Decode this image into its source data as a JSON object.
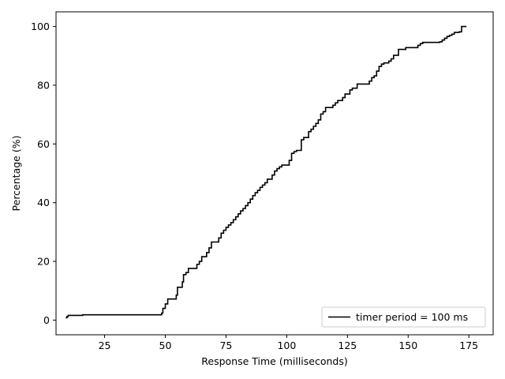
{
  "chart_data": {
    "type": "line",
    "step": true,
    "xlabel": "Response Time (milliseconds)",
    "ylabel": "Percentage (%)",
    "xlim": [
      5,
      185
    ],
    "ylim": [
      -5,
      105
    ],
    "xticks": [
      25,
      50,
      75,
      100,
      125,
      150,
      175
    ],
    "yticks": [
      0,
      20,
      40,
      60,
      80,
      100
    ],
    "grid": false,
    "legend_position": "bottom-right",
    "series": [
      {
        "name": "timer period = 100 ms",
        "color": "#000000",
        "points": [
          [
            9,
            0.8
          ],
          [
            9.5,
            1.2
          ],
          [
            10,
            1.6
          ],
          [
            15.5,
            1.6
          ],
          [
            16,
            1.8
          ],
          [
            48,
            1.8
          ],
          [
            48.5,
            2.4
          ],
          [
            49,
            4.0
          ],
          [
            50,
            5.5
          ],
          [
            51,
            7.2
          ],
          [
            54,
            7.2
          ],
          [
            54.5,
            8.5
          ],
          [
            55,
            11.2
          ],
          [
            57,
            13.0
          ],
          [
            57.5,
            15.5
          ],
          [
            58.5,
            16.2
          ],
          [
            59.5,
            17.6
          ],
          [
            62.5,
            17.6
          ],
          [
            63,
            19.0
          ],
          [
            64,
            20.0
          ],
          [
            65,
            21.6
          ],
          [
            67,
            23.0
          ],
          [
            68,
            24.6
          ],
          [
            69,
            26.6
          ],
          [
            72,
            28.0
          ],
          [
            73,
            29.6
          ],
          [
            74,
            30.6
          ],
          [
            75,
            31.6
          ],
          [
            76,
            32.4
          ],
          [
            77,
            33.2
          ],
          [
            78,
            34.2
          ],
          [
            79,
            35.2
          ],
          [
            80,
            36.2
          ],
          [
            81,
            37.2
          ],
          [
            82,
            38.0
          ],
          [
            83,
            39.0
          ],
          [
            84,
            40.0
          ],
          [
            85,
            41.2
          ],
          [
            86,
            42.4
          ],
          [
            87,
            43.4
          ],
          [
            88,
            44.2
          ],
          [
            89,
            45.2
          ],
          [
            90,
            46.0
          ],
          [
            91,
            46.8
          ],
          [
            92,
            48.0
          ],
          [
            94,
            49.4
          ],
          [
            95,
            50.8
          ],
          [
            96,
            51.6
          ],
          [
            97,
            52.2
          ],
          [
            98,
            52.8
          ],
          [
            101,
            54.4
          ],
          [
            102,
            56.8
          ],
          [
            103,
            57.4
          ],
          [
            104,
            57.8
          ],
          [
            106,
            61.4
          ],
          [
            107,
            62.2
          ],
          [
            109,
            64.2
          ],
          [
            110,
            65.0
          ],
          [
            111,
            66.0
          ],
          [
            112,
            67.0
          ],
          [
            113,
            68.2
          ],
          [
            114,
            70.2
          ],
          [
            115,
            71.0
          ],
          [
            116,
            72.4
          ],
          [
            119,
            73.2
          ],
          [
            120,
            74.0
          ],
          [
            121,
            74.8
          ],
          [
            123,
            75.8
          ],
          [
            124,
            77.0
          ],
          [
            126,
            78.4
          ],
          [
            127,
            79.0
          ],
          [
            129,
            80.4
          ],
          [
            134,
            81.4
          ],
          [
            135,
            82.6
          ],
          [
            136,
            83.2
          ],
          [
            137,
            84.8
          ],
          [
            138,
            86.4
          ],
          [
            139,
            87.2
          ],
          [
            140,
            87.6
          ],
          [
            142,
            88.2
          ],
          [
            143,
            89.0
          ],
          [
            144,
            90.2
          ],
          [
            146,
            92.2
          ],
          [
            149,
            92.8
          ],
          [
            154,
            93.6
          ],
          [
            155,
            94.2
          ],
          [
            156,
            94.6
          ],
          [
            163,
            94.8
          ],
          [
            164,
            95.4
          ],
          [
            165,
            96.0
          ],
          [
            166,
            96.6
          ],
          [
            167,
            97.0
          ],
          [
            168,
            97.4
          ],
          [
            169,
            98.0
          ],
          [
            171,
            98.2
          ],
          [
            172,
            100.0
          ],
          [
            174,
            100.0
          ]
        ]
      }
    ]
  }
}
